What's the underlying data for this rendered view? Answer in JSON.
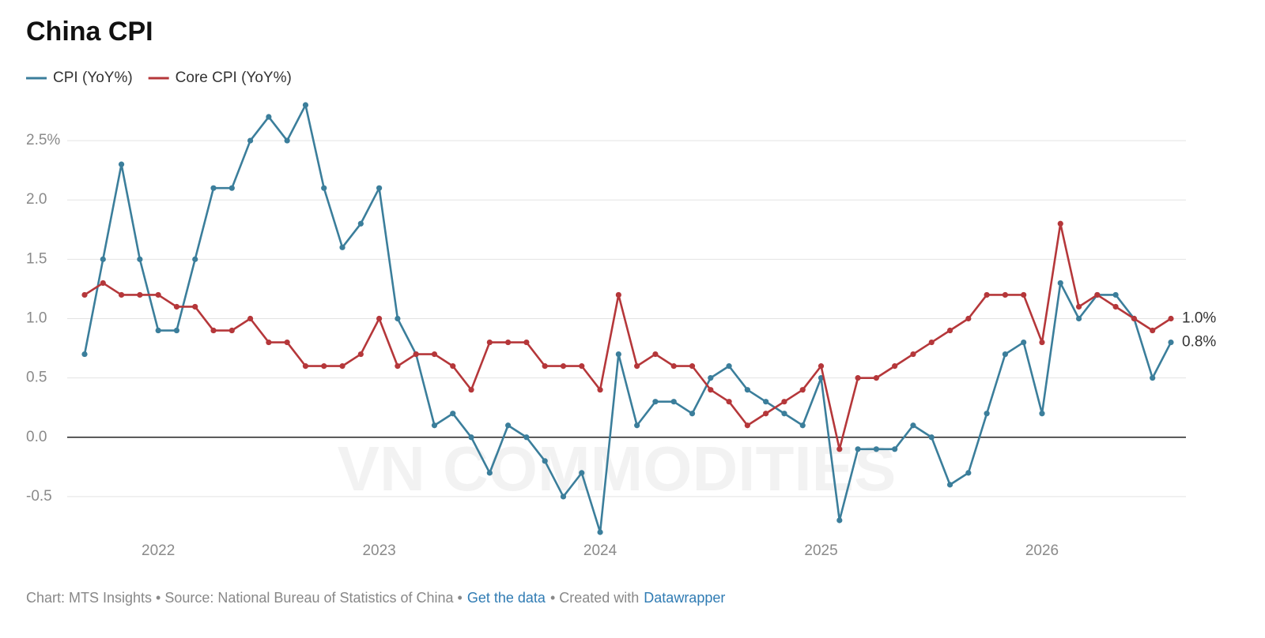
{
  "chart_data": {
    "type": "line",
    "title": "China CPI",
    "categories": [
      null,
      null,
      null,
      null,
      "2022",
      null,
      null,
      null,
      null,
      null,
      null,
      null,
      null,
      null,
      null,
      null,
      "2023",
      null,
      null,
      null,
      null,
      null,
      null,
      null,
      null,
      null,
      null,
      null,
      "2024",
      null,
      null,
      null,
      null,
      null,
      null,
      null,
      null,
      null,
      null,
      null,
      "2025",
      null,
      null,
      null,
      null,
      null,
      null,
      null,
      null,
      null,
      null,
      null,
      "2026",
      null,
      null,
      null,
      null,
      null,
      null,
      null
    ],
    "series": [
      {
        "name": "CPI (YoY%)",
        "color": "#3b7e9b",
        "values": [
          0.7,
          1.5,
          2.3,
          1.5,
          0.9,
          0.9,
          1.5,
          2.1,
          2.1,
          2.5,
          2.7,
          2.5,
          2.8,
          2.1,
          1.6,
          1.8,
          2.1,
          1.0,
          0.7,
          0.1,
          0.2,
          0.0,
          -0.3,
          0.1,
          0.0,
          -0.2,
          -0.5,
          -0.3,
          -0.8,
          0.7,
          0.1,
          0.3,
          0.3,
          0.2,
          0.5,
          0.6,
          0.4,
          0.3,
          0.2,
          0.1,
          0.5,
          -0.7,
          -0.1,
          -0.1,
          -0.1,
          0.1,
          0.0,
          -0.4,
          -0.3,
          0.2,
          0.7,
          0.8,
          0.2,
          1.3,
          1.0,
          1.2,
          1.2,
          1.0,
          0.5,
          0.8
        ],
        "value_labels": [
          null,
          null,
          null,
          null,
          null,
          null,
          null,
          null,
          null,
          null,
          null,
          null,
          null,
          null,
          null,
          null,
          null,
          null,
          null,
          null,
          null,
          null,
          null,
          null,
          null,
          null,
          null,
          null,
          null,
          null,
          null,
          null,
          null,
          null,
          null,
          null,
          null,
          null,
          null,
          null,
          null,
          null,
          null,
          null,
          null,
          null,
          null,
          null,
          null,
          null,
          null,
          null,
          null,
          null,
          null,
          null,
          null,
          null,
          null,
          "0.8%"
        ]
      },
      {
        "name": "Core CPI (YoY%)",
        "color": "#b5373a",
        "values": [
          1.2,
          1.3,
          1.2,
          1.2,
          1.2,
          1.1,
          1.1,
          0.9,
          0.9,
          1.0,
          0.8,
          0.8,
          0.6,
          0.6,
          0.6,
          0.7,
          1.0,
          0.6,
          0.7,
          0.7,
          0.6,
          0.4,
          0.8,
          0.8,
          0.8,
          0.6,
          0.6,
          0.6,
          0.4,
          1.2,
          0.6,
          0.7,
          0.6,
          0.6,
          0.4,
          0.3,
          0.1,
          0.2,
          0.3,
          0.4,
          0.6,
          -0.1,
          0.5,
          0.5,
          0.6,
          0.7,
          0.8,
          0.9,
          1.0,
          1.2,
          1.2,
          1.2,
          0.8,
          1.8,
          1.1,
          1.2,
          1.1,
          1.0,
          0.9,
          1.0
        ],
        "value_labels": [
          null,
          null,
          null,
          null,
          null,
          null,
          null,
          null,
          null,
          null,
          null,
          null,
          null,
          null,
          null,
          null,
          null,
          null,
          null,
          null,
          null,
          null,
          null,
          null,
          null,
          null,
          null,
          null,
          null,
          null,
          null,
          null,
          null,
          null,
          null,
          null,
          null,
          null,
          null,
          null,
          null,
          null,
          null,
          null,
          null,
          null,
          null,
          null,
          null,
          null,
          null,
          null,
          null,
          null,
          null,
          null,
          null,
          null,
          null,
          "1.0%"
        ]
      }
    ],
    "ylim": [
      -0.8,
      2.8
    ],
    "yticks": [
      -0.5,
      {
        "value": 0,
        "label": "0.0"
      },
      0.5,
      {
        "value": 1,
        "label": "1.0"
      },
      1.5,
      {
        "value": 2,
        "label": "2.0"
      },
      {
        "value": 2.5,
        "label": "2.5%"
      }
    ],
    "grid": true,
    "watermark": "VN COMMODITIES",
    "footer": {
      "source": "Chart: MTS Insights • Source: National Bureau of Statistics of China •",
      "data_link": "Get the data",
      "created": "• Created with",
      "tool": "Datawrapper"
    }
  }
}
